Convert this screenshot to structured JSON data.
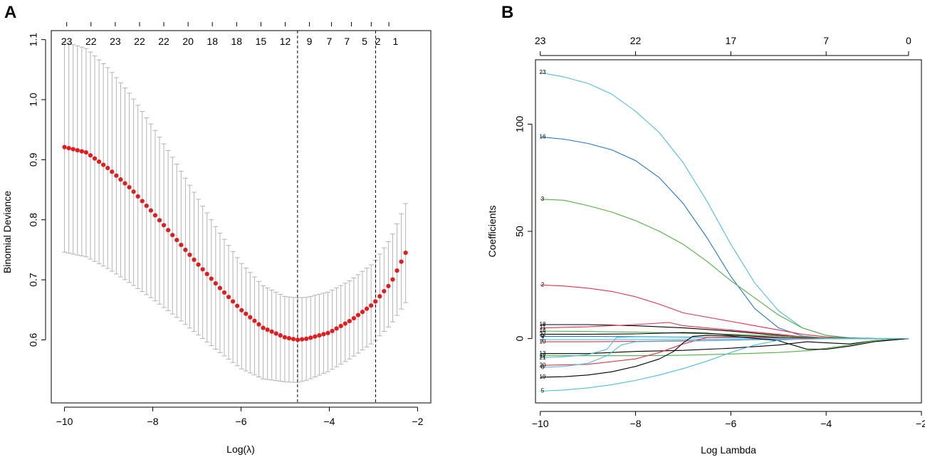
{
  "panel_labels": {
    "a": "A",
    "b": "B"
  },
  "colors": {
    "point": "#e41a1c",
    "errorbar": "#b3b3b3",
    "axis": "#000000",
    "vline": "#000000"
  },
  "chart_data": [
    {
      "id": "A",
      "type": "scatter",
      "title": "",
      "xlabel": "Log(λ)",
      "ylabel": "Binomial Deviance",
      "xlim": [
        -10.3,
        -1.7
      ],
      "ylim": [
        0.495,
        1.115
      ],
      "xticks": [
        -10,
        -8,
        -6,
        -4,
        -2
      ],
      "xtick_labels": [
        "−10",
        "−8",
        "−6",
        "−4",
        "−2"
      ],
      "yticks": [
        0.6,
        0.7,
        0.8,
        0.9,
        1.0,
        1.1
      ],
      "ytick_labels": [
        "0.6",
        "0.7",
        "0.8",
        "0.9",
        "1.0",
        "1.1"
      ],
      "top_ticks_x": [
        -9.95,
        -9.4,
        -8.85,
        -8.3,
        -7.75,
        -7.2,
        -6.65,
        -6.1,
        -5.55,
        -5.0,
        -4.45,
        -3.95,
        -3.5,
        -3.05,
        -2.65
      ],
      "top_tick_labels": [
        "23",
        "22",
        "23",
        "22",
        "22",
        "20",
        "18",
        "18",
        "15",
        "12",
        "9",
        "7",
        "7",
        "5",
        "2",
        "1"
      ],
      "top_label_x": [
        -9.95,
        -9.4,
        -8.85,
        -8.3,
        -7.75,
        -7.2,
        -6.65,
        -6.1,
        -5.55,
        -5.0,
        -4.45,
        -4.0,
        -3.6,
        -3.2,
        -2.9,
        -2.5
      ],
      "vlines": [
        -4.72,
        -2.95
      ],
      "x_start": -10.0,
      "x_end": -2.27,
      "n_points": 80,
      "mean_knots": {
        "x": [
          -10.0,
          -9.5,
          -9.0,
          -8.5,
          -8.0,
          -7.5,
          -7.0,
          -6.5,
          -6.0,
          -5.5,
          -5.0,
          -4.72,
          -4.5,
          -4.0,
          -3.5,
          -3.0,
          -2.6,
          -2.27
        ],
        "y": [
          0.921,
          0.912,
          0.885,
          0.852,
          0.812,
          0.77,
          0.728,
          0.688,
          0.65,
          0.62,
          0.604,
          0.6,
          0.602,
          0.612,
          0.633,
          0.66,
          0.695,
          0.745
        ]
      },
      "upper_knots": {
        "x": [
          -10.0,
          -9.5,
          -9.0,
          -8.5,
          -8.0,
          -7.5,
          -7.0,
          -6.5,
          -6.0,
          -5.5,
          -5.0,
          -4.72,
          -4.5,
          -4.0,
          -3.5,
          -3.0,
          -2.6,
          -2.27
        ],
        "y": [
          1.096,
          1.085,
          1.052,
          1.008,
          0.955,
          0.898,
          0.838,
          0.78,
          0.728,
          0.69,
          0.672,
          0.67,
          0.671,
          0.68,
          0.7,
          0.728,
          0.77,
          0.827
        ]
      },
      "lower_knots": {
        "x": [
          -10.0,
          -9.5,
          -9.0,
          -8.5,
          -8.0,
          -7.5,
          -7.0,
          -6.5,
          -6.0,
          -5.5,
          -5.0,
          -4.72,
          -4.5,
          -4.0,
          -3.5,
          -3.0,
          -2.6,
          -2.27
        ],
        "y": [
          0.746,
          0.738,
          0.718,
          0.694,
          0.668,
          0.64,
          0.61,
          0.58,
          0.552,
          0.535,
          0.53,
          0.529,
          0.533,
          0.548,
          0.57,
          0.596,
          0.626,
          0.662
        ]
      }
    },
    {
      "id": "B",
      "type": "line",
      "title": "",
      "xlabel": "Log Lambda",
      "ylabel": "Coefficients",
      "xlim": [
        -10.1,
        -2.0
      ],
      "ylim": [
        -30,
        130
      ],
      "xticks": [
        -10,
        -8,
        -6,
        -4,
        -2
      ],
      "xtick_labels": [
        "−10",
        "−8",
        "−6",
        "−4",
        "−2"
      ],
      "yticks": [
        0,
        50,
        100
      ],
      "ytick_labels": [
        "0",
        "50",
        "100"
      ],
      "top_ticks_x": [
        -10.0,
        -8.0,
        -6.0,
        -4.0,
        -2.27
      ],
      "top_tick_labels": [
        "23",
        "22",
        "17",
        "7",
        "0"
      ],
      "series": [
        {
          "name": "23",
          "label_y": 124,
          "color": "#4dbfe0",
          "x": [
            -10,
            -9.5,
            -9,
            -8.5,
            -8,
            -7.5,
            -7,
            -6.5,
            -6,
            -5.5,
            -5,
            -4.5,
            -4,
            -3.5,
            -3,
            -2.27
          ],
          "y": [
            124,
            122,
            119,
            114,
            106,
            96,
            82,
            64,
            44,
            26,
            13,
            5,
            1.5,
            0.3,
            0,
            0
          ]
        },
        {
          "name": "16",
          "label_y": 94,
          "color": "#1f78c8",
          "x": [
            -10,
            -9.5,
            -9,
            -8.5,
            -8,
            -7.5,
            -7,
            -6.5,
            -6,
            -5.5,
            -5,
            -4.5,
            -4,
            -3.5,
            -3,
            -2.27
          ],
          "y": [
            94,
            93,
            91,
            88,
            83,
            75,
            63,
            47,
            29,
            14,
            5,
            1.2,
            0.2,
            0,
            0,
            0
          ]
        },
        {
          "name": "3",
          "label_y": 65,
          "color": "#52b043",
          "x": [
            -10,
            -9.5,
            -9,
            -8.5,
            -8,
            -7.5,
            -7,
            -6.5,
            -6,
            -5.5,
            -5,
            -4.5,
            -4,
            -3.5,
            -3,
            -2.27
          ],
          "y": [
            65,
            64.5,
            62,
            59,
            55,
            50,
            44,
            36,
            27,
            19,
            11,
            5,
            1.5,
            0.3,
            0,
            0
          ]
        },
        {
          "name": "2",
          "label_y": 25,
          "color": "#e6304a",
          "x": [
            -10,
            -9.5,
            -9,
            -8.5,
            -8,
            -7.5,
            -7,
            -6.5,
            -6,
            -5.5,
            -5,
            -4.5,
            -4,
            -3.5,
            -3,
            -2.27
          ],
          "y": [
            25,
            24.5,
            23.5,
            22,
            19.5,
            16,
            12,
            10,
            8,
            6,
            4,
            2,
            0.8,
            0.2,
            0,
            0
          ]
        },
        {
          "name": "18",
          "label_y": 6.5,
          "color": "#000000",
          "x": [
            -10,
            -9,
            -8,
            -7,
            -6,
            -5,
            -4.4,
            -4,
            -3.5,
            -3,
            -2.27
          ],
          "y": [
            6.5,
            6.5,
            6.0,
            5.0,
            3.5,
            1.5,
            0.4,
            0.2,
            0.1,
            0,
            0
          ]
        },
        {
          "name": "11",
          "label_y": 5.0,
          "color": "#e6304a",
          "x": [
            -10,
            -9,
            -8,
            -7.3,
            -7,
            -6,
            -5,
            -4.4,
            -4,
            -3,
            -2.27
          ],
          "y": [
            5.0,
            5.5,
            6.5,
            7.5,
            6.0,
            4.0,
            2.0,
            0.6,
            0.2,
            0,
            0
          ]
        },
        {
          "name": "14",
          "label_y": 3.5,
          "color": "#52b043",
          "x": [
            -10,
            -9,
            -8,
            -7,
            -6,
            -5,
            -4,
            -3,
            -2.27
          ],
          "y": [
            3.5,
            3.3,
            3.0,
            2.5,
            2.0,
            1.2,
            0.4,
            0.1,
            0
          ]
        },
        {
          "name": "22",
          "label_y": 2.0,
          "color": "#000000",
          "x": [
            -10,
            -9,
            -8,
            -7,
            -6.5,
            -6,
            -5,
            -4,
            -3,
            -2.27
          ],
          "y": [
            2.0,
            2.0,
            2.2,
            2.8,
            2.5,
            1.6,
            0.6,
            0.2,
            0,
            0
          ]
        },
        {
          "name": "9",
          "label_y": 1.0,
          "color": "#1f78c8",
          "x": [
            -10,
            -9,
            -8,
            -7,
            -6,
            -5,
            -4,
            -3,
            -2.27
          ],
          "y": [
            1.0,
            1.0,
            0.9,
            0.7,
            0.5,
            0.3,
            0.1,
            0,
            0
          ]
        },
        {
          "name": "7",
          "label_y": -0.5,
          "color": "#4dbfe0",
          "x": [
            -10,
            -9,
            -8,
            -7,
            -6,
            -5,
            -4,
            -3,
            -2.27
          ],
          "y": [
            -0.5,
            -0.5,
            -0.4,
            -0.3,
            -0.2,
            -0.1,
            0,
            0,
            0
          ]
        },
        {
          "name": "10",
          "label_y": -1.5,
          "color": "#e6304a",
          "x": [
            -10,
            -9,
            -8,
            -7,
            -6,
            -5,
            -4,
            -3,
            -2.27
          ],
          "y": [
            -1.5,
            -1.5,
            -1.3,
            -1.0,
            -0.7,
            -0.4,
            -0.1,
            0,
            0
          ]
        },
        {
          "name": "13",
          "label_y": -7.0,
          "color": "#000000",
          "x": [
            -10,
            -9,
            -8,
            -7,
            -6,
            -5,
            -4.4,
            -4,
            -3.5,
            -3,
            -2.27
          ],
          "y": [
            -7.0,
            -7.0,
            -6.0,
            -5.5,
            -4.5,
            -3.0,
            -1.5,
            -2.0,
            -2.5,
            -1.0,
            0
          ]
        },
        {
          "name": "12",
          "label_y": -8.0,
          "color": "#52b043",
          "x": [
            -10,
            -9,
            -8,
            -7,
            -6,
            -5,
            -4.5,
            -4.3,
            -4,
            -3.5,
            -3,
            -2.27
          ],
          "y": [
            -8.0,
            -8.0,
            -8.0,
            -7.8,
            -7.2,
            -6.5,
            -5.8,
            -5.5,
            -4.5,
            -3.0,
            -1.0,
            0
          ]
        },
        {
          "name": "21",
          "label_y": -9.0,
          "color": "#4dbfe0",
          "x": [
            -10,
            -9.5,
            -9,
            -8.6,
            -8.4,
            -8,
            -7,
            -6,
            -5,
            -4,
            -3,
            -2.27
          ],
          "y": [
            -9.0,
            -8.5,
            -7.5,
            -5.0,
            0.5,
            0.8,
            0.6,
            0.4,
            0.2,
            0.1,
            0,
            0
          ]
        },
        {
          "name": "20",
          "label_y": -12.5,
          "color": "#e6304a",
          "x": [
            -10,
            -9,
            -8,
            -7.5,
            -7,
            -6.5,
            -6,
            -5,
            -4,
            -3,
            -2.27
          ],
          "y": [
            -12.5,
            -12.0,
            -9.5,
            -6.5,
            -2.5,
            0.5,
            0.8,
            0.4,
            0.1,
            0,
            0
          ]
        },
        {
          "name": "6",
          "label_y": -13.5,
          "color": "#4dbfe0",
          "x": [
            -10,
            -9.5,
            -9,
            -8.6,
            -8.3,
            -8,
            -7,
            -6,
            -5,
            -4,
            -3,
            -2.27
          ],
          "y": [
            -13.5,
            -13.0,
            -11.5,
            -8.0,
            -3.0,
            -1.5,
            -1.2,
            -0.8,
            -0.4,
            -0.1,
            0,
            0
          ]
        },
        {
          "name": "19",
          "label_y": -18.0,
          "color": "#000000",
          "x": [
            -10,
            -9.5,
            -9,
            -8.5,
            -8,
            -7.5,
            -7.2,
            -7,
            -6.8,
            -6.5,
            -6,
            -5,
            -4.4,
            -4,
            -3.5,
            -3,
            -2.27
          ],
          "y": [
            -18.0,
            -17.8,
            -17.0,
            -15.5,
            -13.0,
            -9.5,
            -6.0,
            -2.0,
            1.0,
            1.5,
            1.2,
            -1.0,
            -5.0,
            -5.0,
            -3.5,
            -1.5,
            0
          ]
        },
        {
          "name": "5",
          "label_y": -24.5,
          "color": "#4dbfe0",
          "x": [
            -10,
            -9.5,
            -9,
            -8.5,
            -8,
            -7.5,
            -7,
            -6.5,
            -6,
            -5.5,
            -5,
            -4.5,
            -4,
            -3.5,
            -3,
            -2.27
          ],
          "y": [
            -24.5,
            -24.0,
            -23.0,
            -21.5,
            -19.5,
            -17.0,
            -14.0,
            -10.5,
            -6.5,
            -3.0,
            -0.8,
            -0.2,
            0,
            0,
            0,
            0
          ]
        }
      ]
    }
  ]
}
